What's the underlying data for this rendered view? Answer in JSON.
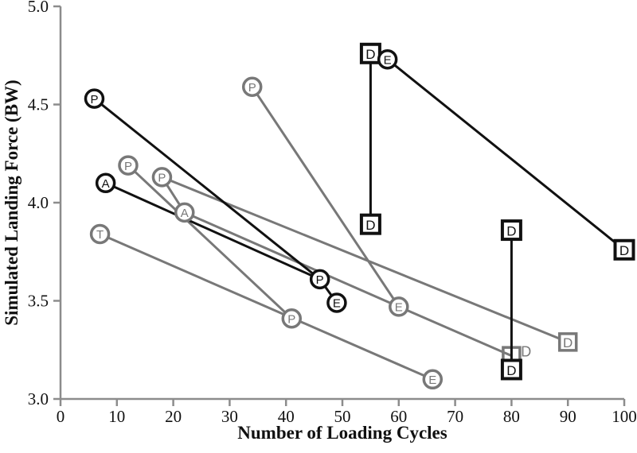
{
  "chart_data": {
    "type": "scatter",
    "title": "",
    "xlabel": "Number of Loading Cycles",
    "ylabel": "Simulated Landing Force (BW)",
    "xlim": [
      0,
      100
    ],
    "ylim": [
      3.0,
      5.0
    ],
    "xticks": [
      0,
      10,
      20,
      30,
      40,
      50,
      60,
      70,
      80,
      90,
      100
    ],
    "yticks": [
      "3.0",
      "3.5",
      "4.0",
      "4.5",
      "5.0"
    ],
    "grid": false,
    "legend": false,
    "colors": {
      "black": "#111111",
      "gray": "#787878",
      "axis": "#8c8c8c"
    },
    "segments": [
      {
        "color": "gray",
        "from": [
          7,
          3.84
        ],
        "to": [
          66,
          3.1
        ]
      },
      {
        "color": "gray",
        "from": [
          12,
          4.19
        ],
        "to": [
          41,
          3.41
        ]
      },
      {
        "color": "gray",
        "from": [
          18,
          4.13
        ],
        "to": [
          22,
          3.95
        ]
      },
      {
        "color": "gray",
        "from": [
          22,
          3.95
        ],
        "to": [
          60,
          3.47
        ]
      },
      {
        "color": "gray",
        "from": [
          60,
          3.47
        ],
        "to": [
          80,
          3.22
        ]
      },
      {
        "color": "gray",
        "from": [
          18,
          4.13
        ],
        "to": [
          90,
          3.29
        ]
      },
      {
        "color": "gray",
        "from": [
          34,
          4.59
        ],
        "to": [
          60,
          3.47
        ]
      },
      {
        "color": "black",
        "from": [
          6,
          4.53
        ],
        "to": [
          46,
          3.61
        ]
      },
      {
        "color": "black",
        "from": [
          8,
          4.1
        ],
        "to": [
          46,
          3.61
        ]
      },
      {
        "color": "black",
        "from": [
          46,
          3.61
        ],
        "to": [
          49,
          3.49
        ]
      },
      {
        "color": "black",
        "from": [
          55,
          4.76
        ],
        "to": [
          55,
          3.89
        ]
      },
      {
        "color": "black",
        "from": [
          58,
          4.73
        ],
        "to": [
          100,
          3.76
        ]
      },
      {
        "color": "black",
        "from": [
          80,
          3.86
        ],
        "to": [
          80,
          3.15
        ]
      }
    ],
    "markers": [
      {
        "shape": "square",
        "color": "gray",
        "label": "D",
        "x": 80,
        "y": 3.22,
        "layer": "under",
        "show_label": false
      },
      {
        "shape": "square",
        "color": "gray",
        "label": "D",
        "x": 90,
        "y": 3.29
      },
      {
        "shape": "square",
        "color": "black",
        "label": "D",
        "x": 55,
        "y": 4.76
      },
      {
        "shape": "square",
        "color": "black",
        "label": "D",
        "x": 55,
        "y": 3.89
      },
      {
        "shape": "square",
        "color": "black",
        "label": "D",
        "x": 80,
        "y": 3.86
      },
      {
        "shape": "square",
        "color": "black",
        "label": "D",
        "x": 80,
        "y": 3.15
      },
      {
        "shape": "square",
        "color": "black",
        "label": "D",
        "x": 100,
        "y": 3.76
      },
      {
        "shape": "circle",
        "color": "gray",
        "label": "P",
        "x": 12,
        "y": 4.19
      },
      {
        "shape": "circle",
        "color": "gray",
        "label": "P",
        "x": 18,
        "y": 4.13
      },
      {
        "shape": "circle",
        "color": "gray",
        "label": "A",
        "x": 22,
        "y": 3.95
      },
      {
        "shape": "circle",
        "color": "gray",
        "label": "T",
        "x": 7,
        "y": 3.84
      },
      {
        "shape": "circle",
        "color": "gray",
        "label": "P",
        "x": 34,
        "y": 4.59
      },
      {
        "shape": "circle",
        "color": "gray",
        "label": "P",
        "x": 41,
        "y": 3.41
      },
      {
        "shape": "circle",
        "color": "gray",
        "label": "E",
        "x": 60,
        "y": 3.47
      },
      {
        "shape": "circle",
        "color": "gray",
        "label": "E",
        "x": 66,
        "y": 3.1
      },
      {
        "shape": "circle",
        "color": "black",
        "label": "P",
        "x": 6,
        "y": 4.53
      },
      {
        "shape": "circle",
        "color": "black",
        "label": "A",
        "x": 8,
        "y": 4.1
      },
      {
        "shape": "circle",
        "color": "black",
        "label": "P",
        "x": 46,
        "y": 3.61
      },
      {
        "shape": "circle",
        "color": "black",
        "label": "E",
        "x": 49,
        "y": 3.49
      },
      {
        "shape": "circle",
        "color": "black",
        "label": "E",
        "x": 58,
        "y": 4.73
      }
    ],
    "annotations": [
      {
        "text": "D",
        "x": 82.6,
        "y": 3.24,
        "color": "gray"
      }
    ]
  }
}
